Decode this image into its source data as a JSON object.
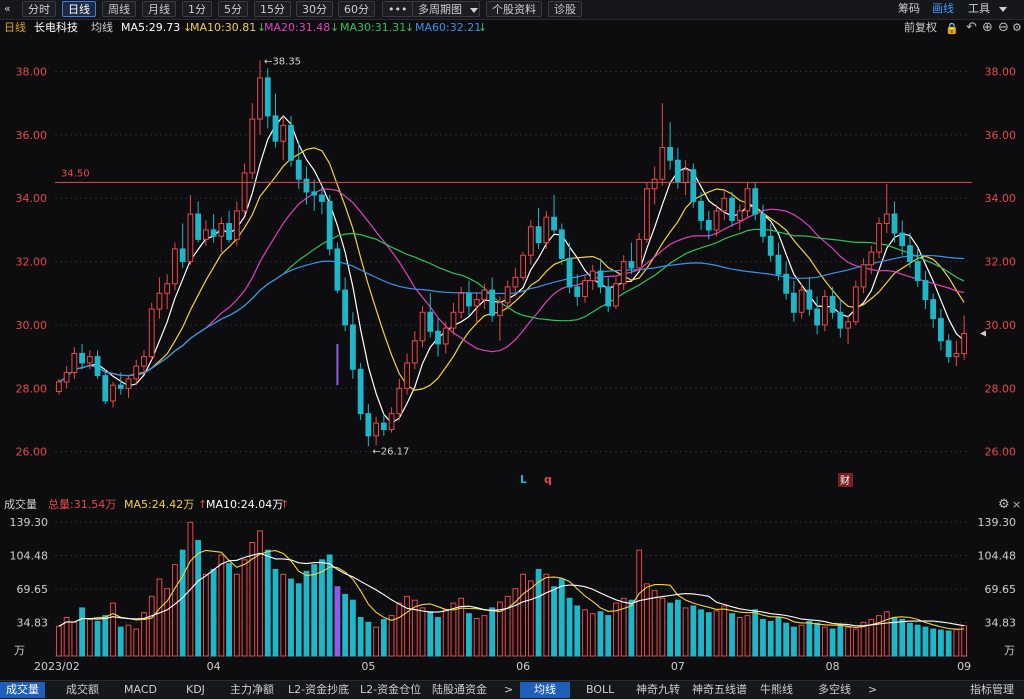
{
  "toolbar": {
    "back_icon": "double-chevron-left-icon",
    "back_glyph": "«",
    "periods": [
      "分时",
      "日线",
      "周线",
      "月线",
      "1分",
      "5分",
      "15分",
      "30分",
      "60分"
    ],
    "active_period": "日线",
    "more": "•••",
    "multi_period": "多周期图",
    "stock_info": "个股资料",
    "diagnose": "诊股",
    "chips": "筹码",
    "draw": "画线",
    "tools": "工具"
  },
  "legend": {
    "period": "日线",
    "stock_name": "长电科技",
    "avg_label": "均线",
    "ma5": "MA5:29.73",
    "ma10": "MA10:30.81",
    "ma20": "MA20:31.48",
    "ma30": "MA30:31.31",
    "ma60": "MA60:32.21",
    "down_arrow": "↓",
    "adjust": "前复权"
  },
  "volume_legend": {
    "title": "成交量",
    "total": "总量:31.54万",
    "ma5": "MA5:24.42万",
    "ma10": "MA10:24.04万",
    "up_arrow": "↑"
  },
  "colors": {
    "up": "#e84848",
    "down": "#1fb6c8",
    "ma5": "#ffffff",
    "ma10": "#f2d23c",
    "ma20": "#e040c0",
    "ma30": "#2ec25a",
    "ma60": "#3f8fe8",
    "resist": "#e84848",
    "purple": "#8c5ce8"
  },
  "chart_data": [
    {
      "type": "candlestick",
      "title": "",
      "y_ticks": [
        "38.00",
        "36.00",
        "34.00",
        "32.00",
        "30.00",
        "28.00",
        "26.00"
      ],
      "ylim": [
        25.2,
        38.9
      ],
      "price_line": {
        "value": 34.5,
        "label": "34.50"
      },
      "annotations": [
        {
          "label": "←38.35",
          "value": 38.35
        },
        {
          "label": "←26.17",
          "value": 26.17
        }
      ],
      "markers": [
        "L",
        "q",
        "财"
      ],
      "last_price": 29.73,
      "ma5_last": 29.73,
      "ma10_last": 30.81,
      "ma20_last": 31.48,
      "ma30_last": 31.31,
      "ma60_last": 32.21,
      "candles": [
        [
          27.9,
          28.3,
          27.8,
          28.2
        ],
        [
          28.2,
          28.7,
          28.0,
          28.5
        ],
        [
          28.5,
          29.3,
          28.3,
          29.1
        ],
        [
          29.1,
          29.4,
          28.6,
          28.8
        ],
        [
          28.8,
          29.2,
          28.6,
          29.0
        ],
        [
          29.0,
          29.2,
          28.3,
          28.4
        ],
        [
          28.4,
          28.6,
          27.5,
          27.6
        ],
        [
          27.6,
          28.2,
          27.4,
          28.1
        ],
        [
          28.1,
          28.5,
          27.8,
          28.0
        ],
        [
          28.0,
          28.4,
          27.7,
          28.3
        ],
        [
          28.3,
          28.9,
          28.1,
          28.7
        ],
        [
          28.7,
          29.2,
          28.5,
          29.0
        ],
        [
          29.0,
          30.7,
          28.9,
          30.5
        ],
        [
          30.5,
          31.5,
          30.2,
          31.0
        ],
        [
          31.0,
          31.6,
          30.5,
          31.3
        ],
        [
          31.3,
          32.6,
          31.1,
          32.4
        ],
        [
          32.4,
          33.2,
          31.8,
          32.0
        ],
        [
          32.0,
          34.1,
          31.9,
          33.5
        ],
        [
          33.5,
          33.9,
          32.6,
          32.7
        ],
        [
          32.7,
          33.3,
          32.5,
          33.0
        ],
        [
          33.0,
          33.5,
          32.6,
          32.8
        ],
        [
          32.8,
          33.4,
          32.3,
          33.2
        ],
        [
          33.2,
          33.6,
          32.6,
          32.7
        ],
        [
          32.7,
          33.9,
          32.5,
          33.6
        ],
        [
          33.6,
          35.1,
          33.5,
          34.8
        ],
        [
          34.8,
          37.0,
          34.6,
          36.5
        ],
        [
          36.5,
          38.35,
          36.0,
          37.8
        ],
        [
          37.8,
          38.1,
          36.2,
          36.6
        ],
        [
          36.6,
          37.3,
          35.6,
          35.8
        ],
        [
          35.8,
          36.6,
          35.2,
          36.3
        ],
        [
          36.3,
          36.6,
          35.0,
          35.2
        ],
        [
          35.2,
          35.8,
          34.3,
          34.6
        ],
        [
          34.6,
          35.0,
          33.8,
          34.2
        ],
        [
          34.2,
          34.6,
          33.6,
          34.1
        ],
        [
          34.1,
          34.4,
          33.5,
          33.9
        ],
        [
          33.9,
          34.1,
          32.2,
          32.4
        ],
        [
          32.4,
          32.6,
          31.0,
          31.1
        ],
        [
          31.1,
          31.5,
          29.8,
          30.0
        ],
        [
          30.0,
          30.4,
          28.3,
          28.6
        ],
        [
          28.6,
          28.8,
          27.0,
          27.2
        ],
        [
          27.2,
          27.5,
          26.17,
          26.5
        ],
        [
          26.5,
          27.1,
          26.2,
          26.9
        ],
        [
          26.9,
          27.2,
          26.5,
          26.7
        ],
        [
          26.7,
          27.4,
          26.6,
          27.2
        ],
        [
          27.2,
          28.3,
          27.0,
          28.0
        ],
        [
          28.0,
          29.1,
          27.8,
          28.8
        ],
        [
          28.8,
          29.8,
          28.6,
          29.5
        ],
        [
          29.5,
          30.6,
          29.3,
          30.4
        ],
        [
          30.4,
          31.0,
          29.6,
          29.8
        ],
        [
          29.8,
          30.2,
          29.0,
          29.4
        ],
        [
          29.4,
          30.1,
          29.1,
          29.9
        ],
        [
          29.9,
          30.7,
          29.7,
          30.4
        ],
        [
          30.4,
          31.2,
          30.2,
          31.0
        ],
        [
          31.0,
          31.4,
          30.3,
          30.6
        ],
        [
          30.6,
          31.0,
          30.0,
          30.8
        ],
        [
          30.8,
          31.3,
          30.5,
          31.1
        ],
        [
          31.1,
          31.5,
          30.1,
          30.3
        ],
        [
          30.3,
          30.9,
          29.5,
          30.7
        ],
        [
          30.7,
          31.4,
          30.5,
          31.2
        ],
        [
          31.2,
          31.8,
          30.9,
          31.5
        ],
        [
          31.5,
          32.3,
          31.4,
          32.2
        ],
        [
          32.2,
          33.3,
          31.9,
          33.1
        ],
        [
          33.1,
          33.7,
          32.4,
          32.6
        ],
        [
          32.6,
          33.6,
          32.4,
          33.4
        ],
        [
          33.4,
          34.1,
          32.9,
          33.0
        ],
        [
          33.0,
          33.2,
          31.9,
          32.1
        ],
        [
          32.1,
          32.6,
          31.0,
          31.2
        ],
        [
          31.2,
          31.6,
          30.6,
          30.9
        ],
        [
          30.9,
          31.6,
          30.7,
          31.4
        ],
        [
          31.4,
          31.9,
          31.1,
          31.7
        ],
        [
          31.7,
          32.1,
          31.0,
          31.2
        ],
        [
          31.2,
          31.5,
          30.4,
          30.6
        ],
        [
          30.6,
          31.5,
          30.5,
          31.3
        ],
        [
          31.3,
          32.2,
          31.1,
          32.0
        ],
        [
          32.0,
          32.6,
          31.6,
          31.8
        ],
        [
          31.8,
          32.9,
          31.7,
          32.7
        ],
        [
          32.7,
          34.5,
          32.6,
          34.3
        ],
        [
          34.3,
          35.0,
          33.8,
          34.6
        ],
        [
          34.6,
          37.0,
          34.4,
          35.6
        ],
        [
          35.6,
          36.4,
          34.9,
          35.2
        ],
        [
          35.2,
          35.6,
          34.3,
          34.5
        ],
        [
          34.5,
          35.2,
          34.1,
          34.9
        ],
        [
          34.9,
          35.1,
          33.7,
          33.9
        ],
        [
          33.9,
          34.2,
          33.0,
          33.3
        ],
        [
          33.3,
          33.6,
          32.7,
          33.0
        ],
        [
          33.0,
          33.8,
          32.8,
          33.6
        ],
        [
          33.6,
          34.3,
          33.3,
          34.0
        ],
        [
          34.0,
          34.2,
          33.1,
          33.3
        ],
        [
          33.3,
          33.8,
          33.0,
          33.6
        ],
        [
          33.6,
          34.5,
          33.4,
          34.3
        ],
        [
          34.3,
          34.5,
          33.3,
          33.5
        ],
        [
          33.5,
          33.8,
          32.6,
          32.8
        ],
        [
          32.8,
          33.2,
          32.0,
          32.2
        ],
        [
          32.2,
          32.6,
          31.4,
          31.6
        ],
        [
          31.6,
          32.0,
          30.8,
          31.0
        ],
        [
          31.0,
          31.4,
          30.1,
          30.4
        ],
        [
          30.4,
          31.3,
          30.2,
          31.1
        ],
        [
          31.1,
          31.5,
          30.3,
          30.5
        ],
        [
          30.5,
          30.9,
          29.7,
          30.0
        ],
        [
          30.0,
          31.1,
          29.8,
          30.9
        ],
        [
          30.9,
          31.2,
          30.2,
          30.4
        ],
        [
          30.4,
          30.8,
          29.6,
          29.9
        ],
        [
          29.9,
          30.3,
          29.4,
          30.1
        ],
        [
          30.1,
          31.4,
          30.0,
          31.2
        ],
        [
          31.2,
          32.1,
          31.0,
          31.9
        ],
        [
          31.9,
          32.5,
          31.6,
          32.3
        ],
        [
          32.3,
          33.4,
          32.1,
          33.2
        ],
        [
          33.2,
          34.45,
          32.9,
          33.5
        ],
        [
          33.5,
          33.9,
          32.6,
          32.9
        ],
        [
          32.9,
          33.3,
          32.2,
          32.5
        ],
        [
          32.5,
          32.9,
          31.8,
          32.0
        ],
        [
          32.0,
          32.4,
          31.2,
          31.4
        ],
        [
          31.4,
          31.7,
          30.5,
          30.8
        ],
        [
          30.8,
          31.0,
          29.9,
          30.2
        ],
        [
          30.2,
          30.5,
          29.2,
          29.5
        ],
        [
          29.5,
          29.7,
          28.8,
          29.0
        ],
        [
          29.0,
          29.5,
          28.7,
          29.1
        ],
        [
          29.1,
          30.3,
          28.9,
          29.73
        ]
      ],
      "volume": {
        "y_ticks": [
          "139.30",
          "104.48",
          "69.65",
          "34.83"
        ],
        "unit": "万",
        "ylim": [
          0,
          139.3
        ],
        "x_ticks": [
          "2023/02",
          "04",
          "05",
          "06",
          "07",
          "08",
          "09"
        ],
        "values": [
          31,
          40,
          35,
          50,
          38,
          36,
          42,
          55,
          30,
          32,
          28,
          45,
          62,
          80,
          70,
          95,
          110,
          139,
          120,
          85,
          90,
          105,
          96,
          85,
          100,
          118,
          130,
          110,
          90,
          85,
          80,
          75,
          88,
          95,
          100,
          105,
          72,
          64,
          58,
          40,
          35,
          30,
          38,
          42,
          55,
          62,
          58,
          50,
          46,
          40,
          48,
          55,
          60,
          44,
          39,
          42,
          50,
          56,
          62,
          70,
          85,
          78,
          90,
          85,
          72,
          80,
          60,
          52,
          48,
          44,
          46,
          42,
          55,
          60,
          58,
          110,
          75,
          68,
          60,
          55,
          58,
          50,
          52,
          48,
          45,
          47,
          52,
          44,
          40,
          42,
          48,
          38,
          36,
          40,
          34,
          30,
          32,
          36,
          34,
          30,
          28,
          32,
          30,
          28,
          35,
          38,
          42,
          46,
          40,
          38,
          34,
          32,
          30,
          28,
          27,
          26,
          28,
          31.54
        ]
      }
    }
  ],
  "volume_controls": [
    "×"
  ],
  "bottom_tabs": [
    "成交量",
    "成交额",
    "MACD",
    "KDJ",
    "主力净额",
    "L2-资金抄底",
    "L2-资金仓位",
    "陆股通资金"
  ],
  "bottom_more": ">",
  "bottom_tabs_right": [
    "均线",
    "BOLL",
    "神奇九转",
    "神奇五线谱",
    "牛熊线",
    "多空线"
  ],
  "bottom_right_more": ">",
  "bottom_manage": "指标管理"
}
